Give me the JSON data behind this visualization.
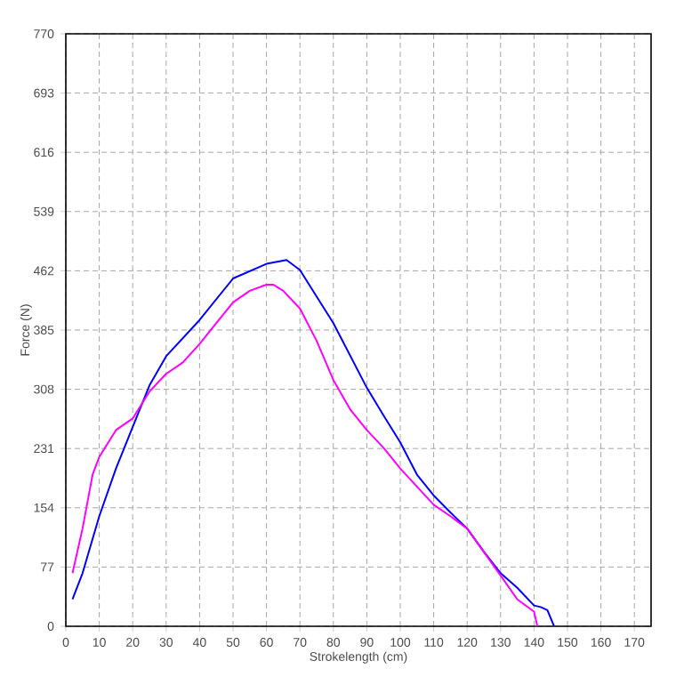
{
  "chart_data": {
    "type": "line",
    "xlabel": "Strokelength (cm)",
    "ylabel": "Force (N)",
    "xlim": [
      0,
      175
    ],
    "ylim": [
      0,
      770
    ],
    "xticks": [
      0,
      10,
      20,
      30,
      40,
      50,
      60,
      70,
      80,
      90,
      100,
      110,
      120,
      130,
      140,
      150,
      160,
      170
    ],
    "yticks": [
      0,
      77,
      154,
      231,
      308,
      385,
      462,
      539,
      616,
      693,
      770
    ],
    "grid": true,
    "marker": "none",
    "line_style": "solid",
    "series": [
      {
        "color": "#0000ff",
        "x": [
          2,
          5,
          10,
          15,
          20,
          25,
          30,
          40,
          50,
          60,
          66,
          70,
          80,
          90,
          95,
          100,
          105,
          110,
          115,
          120,
          125,
          130,
          135,
          140,
          142,
          144,
          146
        ],
        "values": [
          35,
          69,
          143,
          205,
          259,
          313,
          351,
          398,
          452,
          471,
          476,
          463,
          394,
          310,
          274,
          239,
          197,
          170,
          148,
          127,
          97,
          69,
          50,
          27,
          25,
          21,
          0
        ]
      },
      {
        "color": "#ff00ff",
        "x": [
          2,
          5,
          8,
          10,
          15,
          20,
          25,
          30,
          35,
          40,
          45,
          50,
          55,
          60,
          62,
          65,
          70,
          75,
          80,
          85,
          90,
          95,
          100,
          110,
          115,
          120,
          130,
          135,
          140,
          141
        ],
        "values": [
          69,
          127,
          197,
          220,
          255,
          270,
          305,
          328,
          343,
          367,
          394,
          421,
          436,
          444,
          444,
          436,
          413,
          371,
          320,
          282,
          255,
          232,
          205,
          158,
          143,
          127,
          66,
          35,
          19,
          0
        ]
      }
    ]
  }
}
